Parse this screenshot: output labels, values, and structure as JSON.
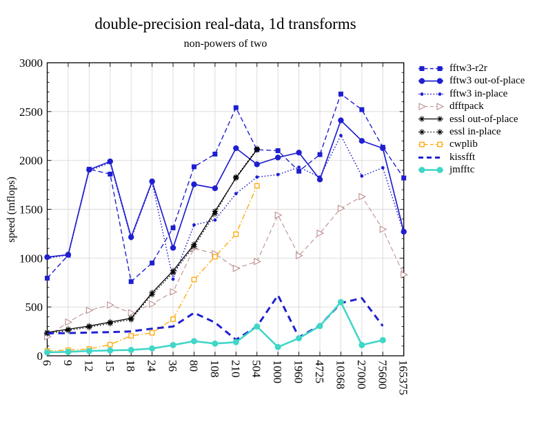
{
  "title": "double-precision real-data, 1d transforms",
  "subtitle": "non-powers of two",
  "chart_data": {
    "type": "line",
    "title": "double-precision real-data, 1d transforms",
    "subtitle": "non-powers of two",
    "xlabel": "",
    "ylabel": "speed (mflops)",
    "ylim": [
      0,
      3000
    ],
    "yticks": [
      0,
      500,
      1000,
      1500,
      2000,
      2500,
      3000
    ],
    "grid": true,
    "legend_position": "outside-right",
    "categories": [
      "6",
      "9",
      "12",
      "15",
      "18",
      "24",
      "36",
      "80",
      "108",
      "210",
      "504",
      "1000",
      "1960",
      "4725",
      "10368",
      "27000",
      "75600",
      "165375"
    ],
    "series": [
      {
        "name": "fftw3-r2r",
        "color": "#1f1fd0",
        "line": "dashed",
        "marker": "filled-square",
        "width": 1.4,
        "values": [
          795,
          1030,
          1910,
          1860,
          760,
          950,
          1310,
          1935,
          2065,
          2540,
          2110,
          2100,
          1890,
          2060,
          2680,
          2520,
          2135,
          1820
        ]
      },
      {
        "name": "fftw3 out-of-place",
        "color": "#1f1fd0",
        "line": "solid",
        "marker": "filled-circle",
        "width": 1.7,
        "values": [
          1010,
          1035,
          1905,
          1990,
          1215,
          1785,
          1105,
          1755,
          1715,
          2125,
          1960,
          2030,
          2080,
          1805,
          2410,
          2200,
          2125,
          1270
        ]
      },
      {
        "name": "fftw3 in-place",
        "color": "#1f1fd0",
        "line": "dotted",
        "marker": "small-circle",
        "width": 1.5,
        "values": [
          1000,
          1030,
          1895,
          1975,
          1200,
          1775,
          785,
          1340,
          1390,
          1660,
          1830,
          1855,
          1930,
          1830,
          2255,
          1840,
          1925,
          1260
        ]
      },
      {
        "name": "dfftpack",
        "color": "#bc8f8f",
        "line": "dashed",
        "marker": "open-triangle-right",
        "width": 1.1,
        "values": [
          195,
          345,
          465,
          520,
          440,
          530,
          655,
          1100,
          1045,
          895,
          965,
          1440,
          1025,
          1255,
          1510,
          1630,
          1295,
          830
        ]
      },
      {
        "name": "essl out-of-place",
        "color": "#000000",
        "line": "solid",
        "marker": "asterisk",
        "width": 1.3,
        "values": [
          240,
          272,
          305,
          345,
          385,
          645,
          870,
          1140,
          1480,
          1820,
          2110,
          null,
          null,
          null,
          null,
          null,
          null,
          null
        ]
      },
      {
        "name": "essl in-place",
        "color": "#000000",
        "line": "dotted",
        "marker": "asterisk",
        "width": 1.3,
        "values": [
          228,
          260,
          292,
          332,
          372,
          628,
          850,
          1120,
          1455,
          1830,
          2120,
          null,
          null,
          null,
          null,
          null,
          null,
          null
        ]
      },
      {
        "name": "cwplib",
        "color": "#ffa500",
        "line": "dashdot",
        "marker": "open-square",
        "width": 1.3,
        "values": [
          50,
          58,
          70,
          115,
          205,
          235,
          375,
          780,
          1015,
          1245,
          1740,
          null,
          null,
          null,
          null,
          null,
          null,
          null
        ]
      },
      {
        "name": "kissfft",
        "color": "#1f1fd0",
        "line": "dashed-thick",
        "marker": "none",
        "width": 3,
        "values": [
          230,
          232,
          238,
          242,
          250,
          278,
          300,
          440,
          340,
          165,
          300,
          620,
          190,
          310,
          540,
          590,
          305,
          null
        ]
      },
      {
        "name": "jmfftc",
        "color": "#40d6c8",
        "line": "solid",
        "marker": "filled-circle-large",
        "width": 2.6,
        "values": [
          35,
          40,
          50,
          55,
          60,
          75,
          110,
          150,
          125,
          140,
          300,
          90,
          180,
          305,
          550,
          110,
          160,
          null
        ]
      }
    ]
  }
}
